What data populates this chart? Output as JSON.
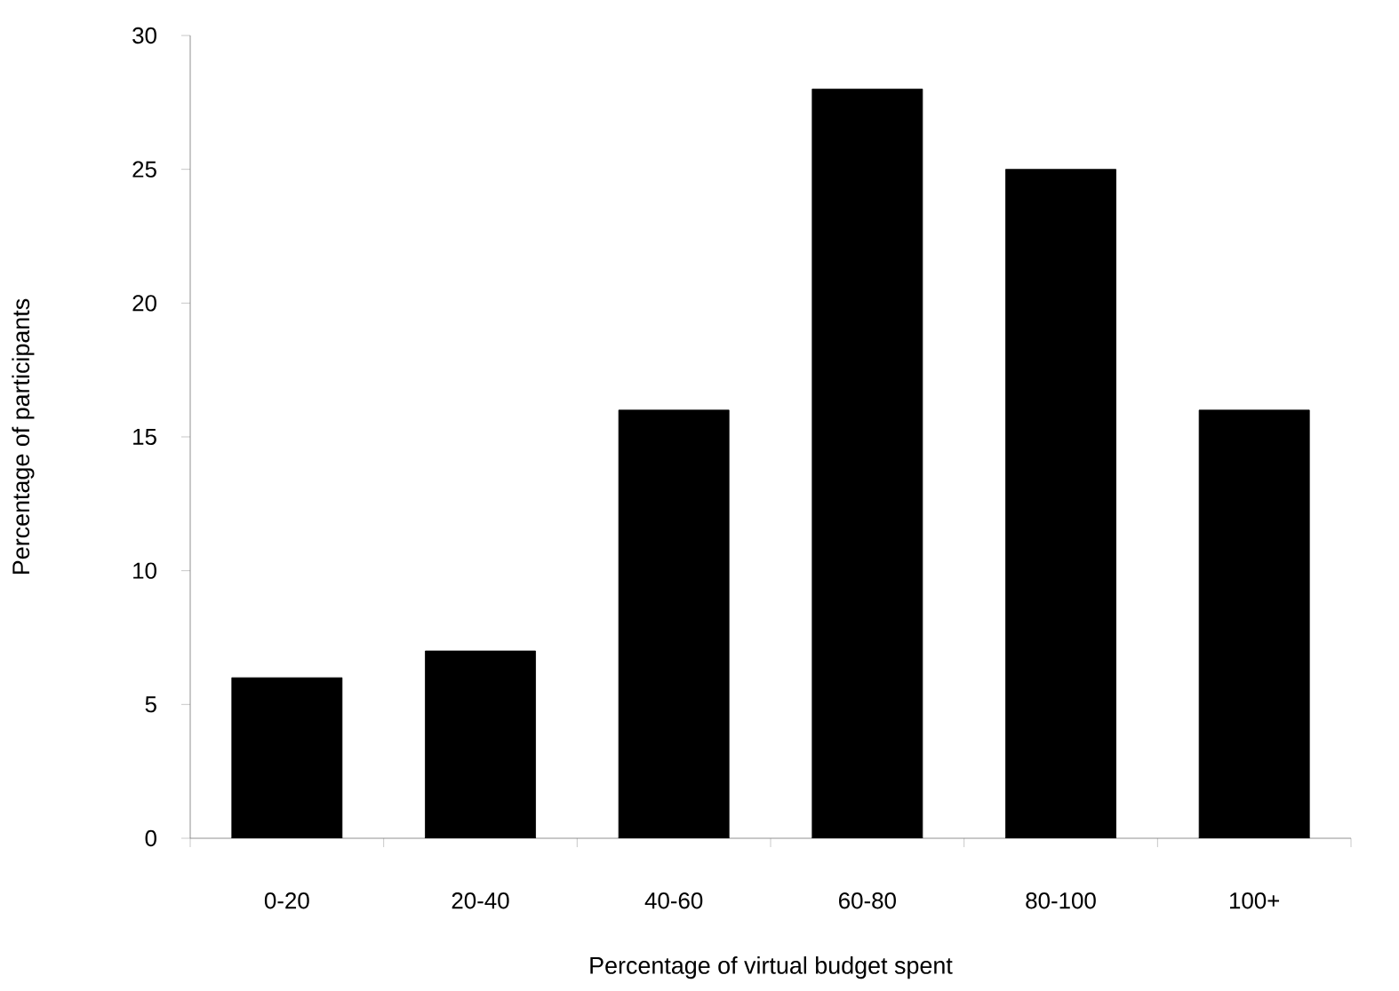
{
  "chart_data": {
    "type": "bar",
    "xlabel": "Percentage of virtual budget spent",
    "ylabel": "Percentage of participants",
    "categories": [
      "0-20",
      "20-40",
      "40-60",
      "60-80",
      "80-100",
      "100+"
    ],
    "values": [
      6,
      7,
      16,
      28,
      25,
      16
    ],
    "color": "#000000",
    "ylim": [
      0,
      30
    ],
    "yticks": [
      0,
      5,
      10,
      15,
      20,
      25,
      30
    ],
    "grid": false
  }
}
